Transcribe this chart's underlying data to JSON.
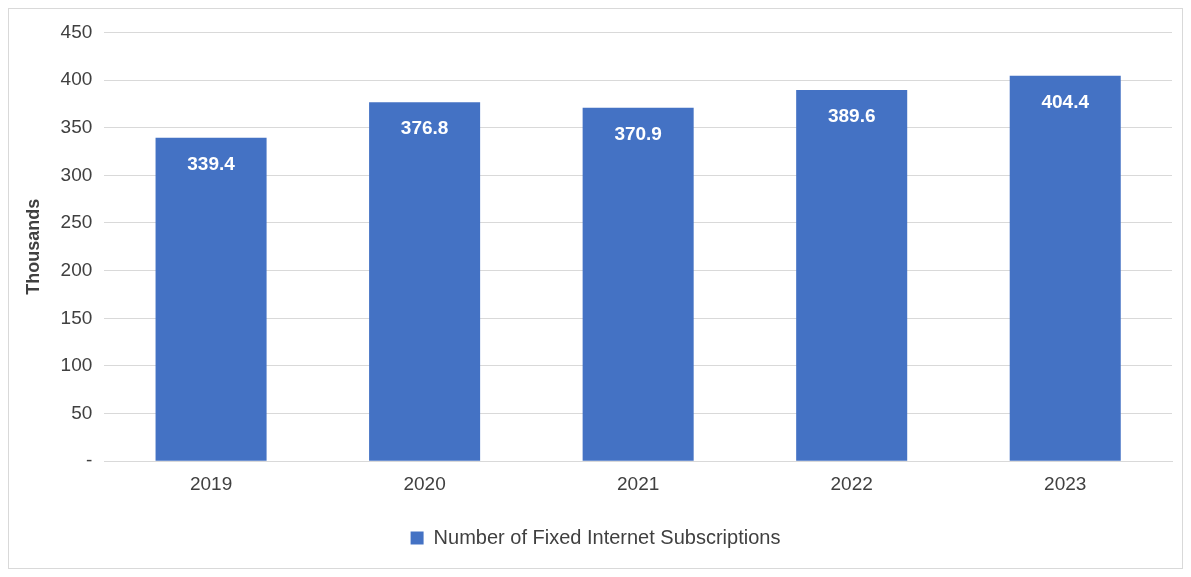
{
  "chart_data": {
    "type": "bar",
    "ylabel": "Thousands",
    "categories": [
      "2019",
      "2020",
      "2021",
      "2022",
      "2023"
    ],
    "series": [
      {
        "name": "Number of Fixed Internet Subscriptions",
        "color": "#4472c4",
        "values": [
          339.4,
          376.8,
          370.9,
          389.6,
          404.4
        ]
      }
    ],
    "ylim": [
      0,
      450
    ],
    "yticks": [
      {
        "value": 0,
        "label": "-"
      },
      50,
      100,
      150,
      200,
      250,
      300,
      350,
      400,
      450
    ],
    "grid": "y",
    "legend": "bottom",
    "data_labels": true
  }
}
